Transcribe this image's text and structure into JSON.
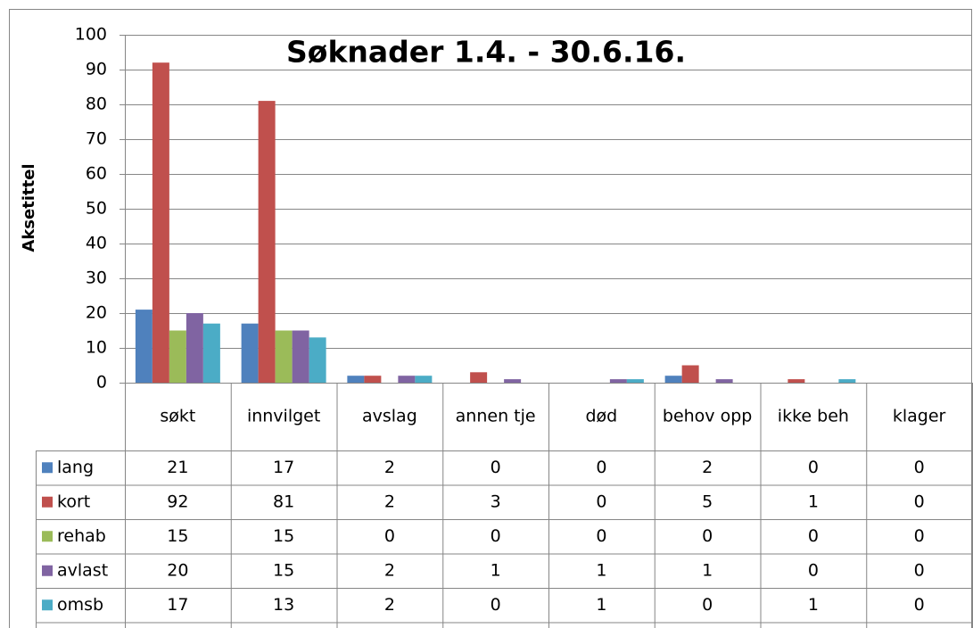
{
  "chart_data": {
    "type": "bar",
    "title": "Søknader 1.4. - 30.6.16.",
    "y_label": "Aksetittel",
    "categories": [
      "søkt",
      "innvilget",
      "avslag",
      "annen tje",
      "død",
      "behov opp",
      "ikke beh",
      "klager"
    ],
    "series": [
      {
        "name": "lang",
        "color": "#4f81bd",
        "values": [
          21,
          17,
          2,
          0,
          0,
          2,
          0,
          0
        ]
      },
      {
        "name": "kort",
        "color": "#c0504d",
        "values": [
          92,
          81,
          2,
          3,
          0,
          5,
          1,
          0
        ]
      },
      {
        "name": "rehab",
        "color": "#9bbb59",
        "values": [
          15,
          15,
          0,
          0,
          0,
          0,
          0,
          0
        ]
      },
      {
        "name": "avlast",
        "color": "#8064a2",
        "values": [
          20,
          15,
          2,
          1,
          1,
          1,
          0,
          0
        ]
      },
      {
        "name": "omsb",
        "color": "#4bacc6",
        "values": [
          17,
          13,
          2,
          0,
          1,
          0,
          1,
          0
        ]
      }
    ],
    "ylim": [
      0,
      100
    ],
    "yticks": [
      0,
      10,
      20,
      30,
      40,
      50,
      60,
      70,
      80,
      90,
      100
    ],
    "grid": true
  }
}
